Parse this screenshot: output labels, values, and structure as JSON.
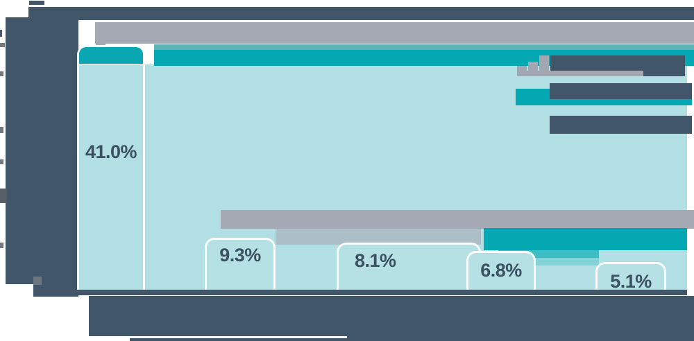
{
  "chart_data": {
    "type": "bar",
    "categories": [
      "",
      "",
      "",
      "",
      ""
    ],
    "values": [
      41.0,
      9.3,
      8.1,
      6.8,
      5.1
    ],
    "value_labels": [
      "41.0%",
      "9.3%",
      "8.1%",
      "6.8%",
      "5.1%"
    ],
    "title": "",
    "xlabel": "",
    "ylabel": "",
    "ylim": [
      0,
      41
    ],
    "grid": false,
    "legend_position": "right",
    "legend_entries": [
      "",
      "",
      ""
    ],
    "note": "all text except the five percentage data labels is redacted as solid blocks"
  },
  "labels": {
    "bar1": "41.0%",
    "bar2": "9.3%",
    "bar3": "8.1%",
    "bar4": "6.8%",
    "bar5": "5.1%"
  },
  "colors": {
    "dark_slate": "#42566a",
    "gray": "#a5a9b3",
    "teal": "#03a8b3",
    "teal_band": "#5fb3b7",
    "teal_mid": "#3fbdc5",
    "teal_soft": "#82d2d7",
    "light_teal": "#b1dfe3",
    "tab_fill": "#b5e1e4",
    "tab_border": "#fbfdfd",
    "label_text": "#3b5161"
  }
}
